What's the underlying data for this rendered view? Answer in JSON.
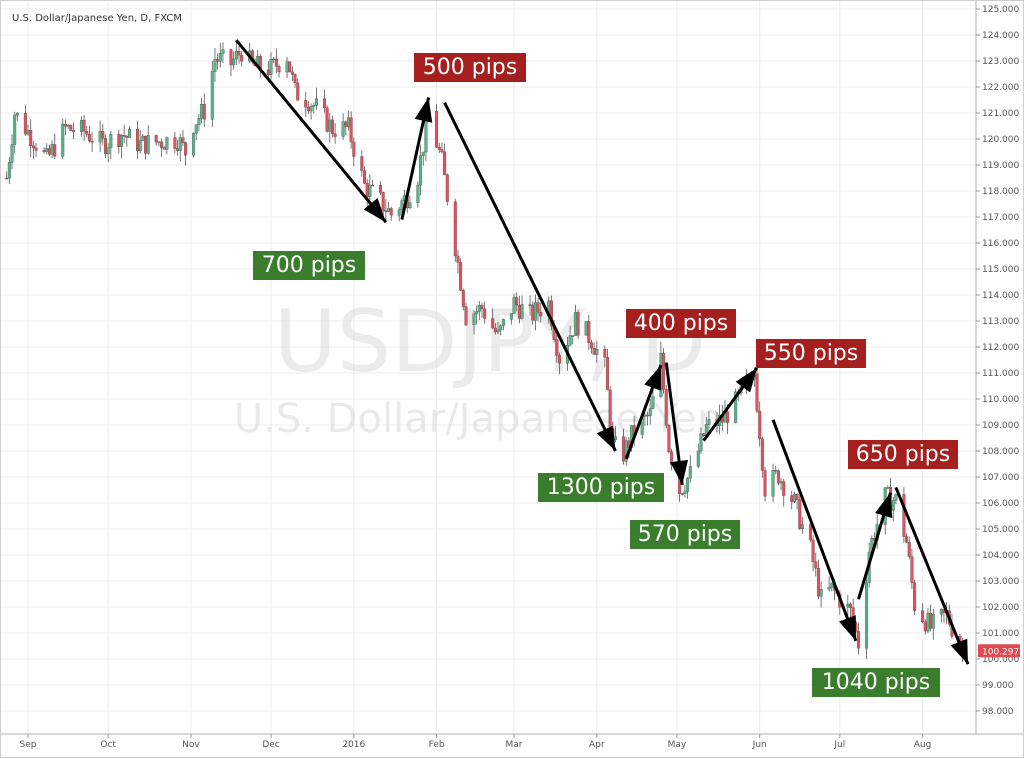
{
  "chart_data": {
    "type": "candlestick",
    "title": "U.S. Dollar/Japanese Yen, D, FXCM",
    "watermark": {
      "symbol": "USDJPY, D",
      "name": "U.S. Dollar/Japanese Yen"
    },
    "current_price": "100.297",
    "y_axis": {
      "range": [
        97.4,
        125.1
      ],
      "ticks": [
        "98.000",
        "99.000",
        "100.000",
        "101.000",
        "102.000",
        "103.000",
        "104.000",
        "105.000",
        "106.000",
        "107.000",
        "108.000",
        "109.000",
        "110.000",
        "111.000",
        "112.000",
        "113.000",
        "114.000",
        "115.000",
        "116.000",
        "117.000",
        "118.000",
        "119.000",
        "120.000",
        "121.000",
        "122.000",
        "123.000",
        "124.000",
        "125.000"
      ]
    },
    "x_axis": {
      "labels": [
        "Sep",
        "Oct",
        "Nov",
        "Dec",
        "2016",
        "Feb",
        "Mar",
        "Apr",
        "May",
        "Jun",
        "Jul",
        "Aug"
      ],
      "label_dates": [
        "2015-09-01",
        "2015-10-01",
        "2015-11-01",
        "2015-12-01",
        "2016-01-01",
        "2016-02-01",
        "2016-03-01",
        "2016-04-01",
        "2016-05-01",
        "2016-06-01",
        "2016-07-01",
        "2016-08-01"
      ]
    },
    "series": [
      {
        "path_close": [
          [
            "2015-08-24",
            118.5
          ],
          [
            "2015-08-27",
            121.0
          ],
          [
            "2015-09-03",
            120.0
          ],
          [
            "2015-09-08",
            119.2
          ],
          [
            "2015-09-15",
            120.4
          ],
          [
            "2015-09-22",
            120.3
          ],
          [
            "2015-09-29",
            119.8
          ],
          [
            "2015-10-06",
            120.2
          ],
          [
            "2015-10-13",
            119.8
          ],
          [
            "2015-10-20",
            119.9
          ],
          [
            "2015-10-27",
            120.0
          ],
          [
            "2015-10-30",
            119.5
          ],
          [
            "2015-11-02",
            120.6
          ],
          [
            "2015-11-06",
            121.1
          ],
          [
            "2015-11-10",
            123.1
          ],
          [
            "2015-11-16",
            122.9
          ],
          [
            "2015-11-20",
            123.4
          ],
          [
            "2015-11-24",
            122.8
          ],
          [
            "2015-12-01",
            122.7
          ],
          [
            "2015-12-07",
            123.2
          ],
          [
            "2015-12-10",
            121.8
          ],
          [
            "2015-12-15",
            121.5
          ],
          [
            "2015-12-18",
            121.2
          ],
          [
            "2015-12-24",
            120.4
          ],
          [
            "2015-12-30",
            120.4
          ],
          [
            "2016-01-05",
            118.2
          ],
          [
            "2016-01-11",
            117.6
          ],
          [
            "2016-01-15",
            117.1
          ],
          [
            "2016-01-21",
            117.8
          ],
          [
            "2016-01-25",
            118.6
          ],
          [
            "2016-01-29",
            121.0
          ],
          [
            "2016-02-03",
            119.1
          ],
          [
            "2016-02-08",
            115.9
          ],
          [
            "2016-02-12",
            113.2
          ],
          [
            "2016-02-18",
            113.5
          ],
          [
            "2016-02-24",
            112.4
          ],
          [
            "2016-03-01",
            113.7
          ],
          [
            "2016-03-07",
            113.2
          ],
          [
            "2016-03-14",
            113.7
          ],
          [
            "2016-03-18",
            111.6
          ],
          [
            "2016-03-24",
            113.0
          ],
          [
            "2016-03-30",
            112.3
          ],
          [
            "2016-04-04",
            111.2
          ],
          [
            "2016-04-07",
            108.2
          ],
          [
            "2016-04-11",
            107.9
          ],
          [
            "2016-04-15",
            108.8
          ],
          [
            "2016-04-21",
            109.4
          ],
          [
            "2016-04-25",
            111.5
          ],
          [
            "2016-04-28",
            108.2
          ],
          [
            "2016-05-02",
            106.5
          ],
          [
            "2016-05-06",
            107.1
          ],
          [
            "2016-05-12",
            108.9
          ],
          [
            "2016-05-18",
            109.2
          ],
          [
            "2016-05-25",
            110.1
          ],
          [
            "2016-05-30",
            111.0
          ],
          [
            "2016-06-03",
            106.6
          ],
          [
            "2016-06-08",
            107.1
          ],
          [
            "2016-06-14",
            106.0
          ],
          [
            "2016-06-20",
            104.2
          ],
          [
            "2016-06-24",
            102.3
          ],
          [
            "2016-06-28",
            102.7
          ],
          [
            "2016-07-05",
            101.8
          ],
          [
            "2016-07-08",
            100.6
          ],
          [
            "2016-07-12",
            104.2
          ],
          [
            "2016-07-18",
            106.2
          ],
          [
            "2016-07-22",
            106.1
          ],
          [
            "2016-07-26",
            104.5
          ],
          [
            "2016-07-29",
            102.1
          ],
          [
            "2016-08-04",
            101.2
          ],
          [
            "2016-08-10",
            101.7
          ],
          [
            "2016-08-16",
            100.297
          ]
        ]
      }
    ],
    "annotations": [
      {
        "text": "700 pips",
        "color": "#3a7d2c",
        "arrow_from": [
          "2015-11-18",
          123.8
        ],
        "arrow_to": [
          "2016-01-13",
          116.8
        ]
      },
      {
        "text": "500 pips",
        "color": "#a51f1f",
        "arrow_from": [
          "2016-01-19",
          116.9
        ],
        "arrow_to": [
          "2016-01-29",
          121.6
        ]
      },
      {
        "text": "1300 pips",
        "color": "#3a7d2c",
        "arrow_from": [
          "2016-02-04",
          121.4
        ],
        "arrow_to": [
          "2016-04-08",
          108.0
        ]
      },
      {
        "text": "400 pips",
        "color": "#a51f1f",
        "arrow_from": [
          "2016-04-12",
          107.7
        ],
        "arrow_to": [
          "2016-04-25",
          111.3
        ]
      },
      {
        "text": "570 pips",
        "color": "#3a7d2c",
        "arrow_from": [
          "2016-04-27",
          111.4
        ],
        "arrow_to": [
          "2016-05-03",
          106.7
        ]
      },
      {
        "text": "550 pips",
        "color": "#a51f1f",
        "arrow_from": [
          "2016-05-11",
          108.4
        ],
        "arrow_to": [
          "2016-05-31",
          111.2
        ]
      },
      {
        "text": "1040 pips",
        "color": "#3a7d2c",
        "arrow_from": [
          "2016-06-06",
          109.2
        ],
        "arrow_to": [
          "2016-07-07",
          100.7
        ]
      },
      {
        "text": "650 pips",
        "color": "#a51f1f",
        "arrow_from": [
          "2016-07-08",
          102.3
        ],
        "arrow_to": [
          "2016-07-20",
          106.4
        ]
      },
      {
        "text": "",
        "color": "#000000",
        "arrow_from": [
          "2016-07-22",
          106.6
        ],
        "arrow_to": [
          "2016-08-18",
          99.8
        ]
      }
    ],
    "colors": {
      "up": "#53b987",
      "down": "#eb4d5c",
      "price_tag": "#e0494f"
    }
  }
}
